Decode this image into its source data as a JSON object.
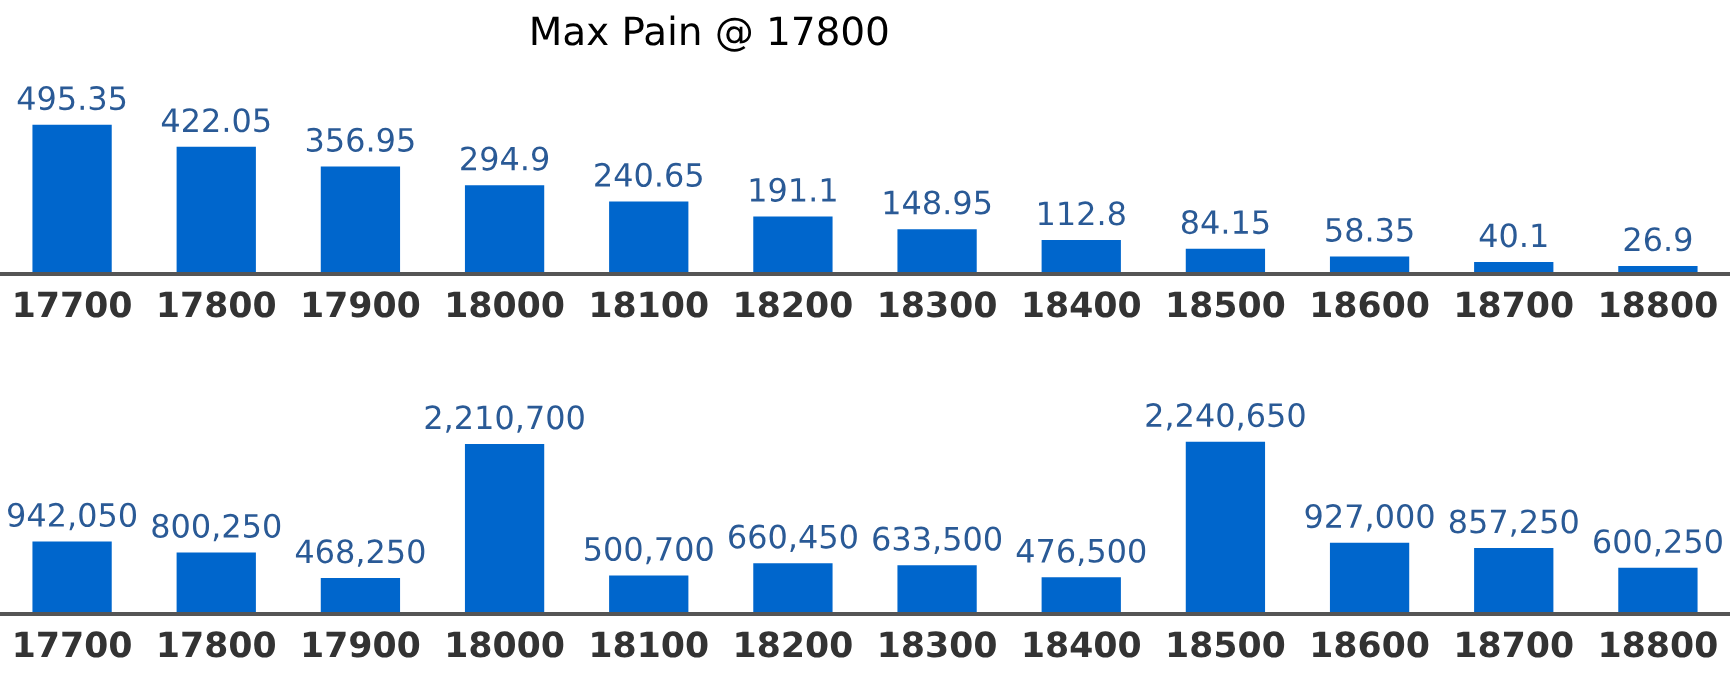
{
  "chart_data": [
    {
      "type": "bar",
      "title": "Max Pain @ 17800",
      "categories": [
        "17700",
        "17800",
        "17900",
        "18000",
        "18100",
        "18200",
        "18300",
        "18400",
        "18500",
        "18600",
        "18700",
        "18800"
      ],
      "series": [
        {
          "color": "#0066cc",
          "values": [
            495.35,
            422.05,
            356.95,
            294.9,
            240.65,
            191.1,
            148.95,
            112.8,
            84.15,
            58.35,
            40.1,
            26.9
          ],
          "value_labels": [
            "495.35",
            "422.05",
            "356.95",
            "294.9",
            "240.65",
            "191.1",
            "148.95",
            "112.8",
            "84.15",
            "58.35",
            "40.1",
            "26.9"
          ]
        }
      ]
    },
    {
      "type": "bar",
      "categories": [
        "17700",
        "17800",
        "17900",
        "18000",
        "18100",
        "18200",
        "18300",
        "18400",
        "18500",
        "18600",
        "18700",
        "18800"
      ],
      "series": [
        {
          "color": "#0066cc",
          "values": [
            942050,
            800250,
            468250,
            2210700,
            500700,
            660450,
            633500,
            476500,
            2240650,
            927000,
            857250,
            600250
          ],
          "value_labels": [
            "942,050",
            "800,250",
            "468,250",
            "2,210,700",
            "500,700",
            "660,450",
            "633,500",
            "476,500",
            "2,240,650",
            "927,000",
            "857,250",
            "600,250"
          ]
        }
      ]
    }
  ]
}
